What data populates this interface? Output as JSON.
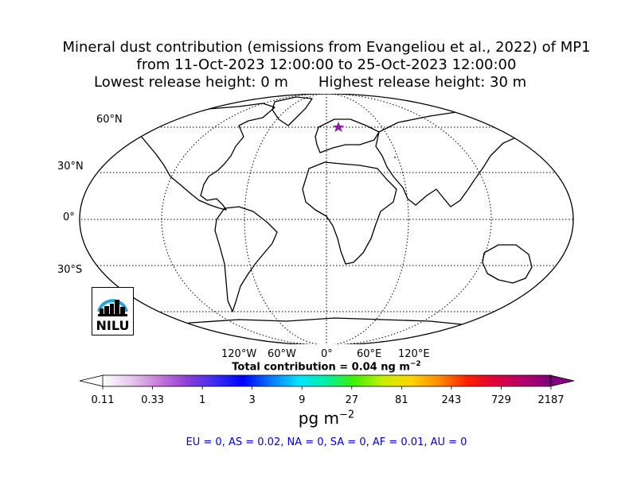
{
  "title": {
    "line1": "Mineral dust contribution (emissions from Evangeliou et al., 2022) of MP1",
    "line2": "from 11-Oct-2023 12:00:00 to 25-Oct-2023 12:00:00",
    "lowest_release": "Lowest release height: 0 m",
    "highest_release": "Highest release height: 30 m"
  },
  "map": {
    "lat_labels": [
      "60°N",
      "30°N",
      "0°",
      "30°S"
    ],
    "lon_labels": [
      "120°W",
      "60°W",
      "0°",
      "60°E",
      "120°E"
    ],
    "release_site_color": "#8a1aa0",
    "logo_text": "NILU",
    "logo_color": "#1aa7df"
  },
  "total": {
    "text": "Total contribution = 0.04 ng m",
    "exponent": "−2"
  },
  "colorbar": {
    "ticks": [
      "0.11",
      "0.33",
      "1",
      "3",
      "9",
      "27",
      "81",
      "243",
      "729",
      "2187"
    ],
    "units_base": "pg m",
    "units_exponent": "−2",
    "colors": [
      "#ffffff",
      "#e6c8ef",
      "#c77bd9",
      "#8f3fd6",
      "#3b2ef0",
      "#0000ff",
      "#0a78ff",
      "#00e5ff",
      "#00f0a0",
      "#42f000",
      "#c6f000",
      "#ffd400",
      "#ff8c00",
      "#ff2000",
      "#e0003a",
      "#b4006a",
      "#800080"
    ]
  },
  "regions": "EU = 0,  AS = 0.02,  NA = 0,  SA = 0,  AF = 0.01,  AU = 0"
}
